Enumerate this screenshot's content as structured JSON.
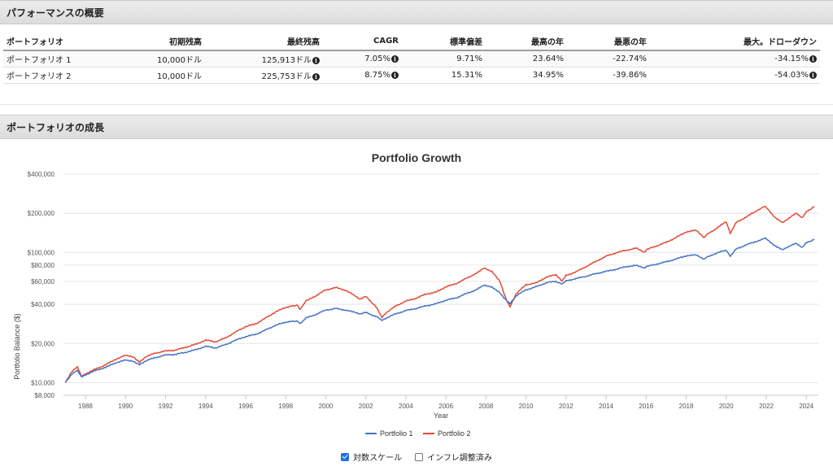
{
  "performance": {
    "title": "パフォーマンスの概要",
    "headers": [
      "ポートフォリオ",
      "初期残高",
      "最終残高",
      "CAGR",
      "標準偏差",
      "最高の年",
      "最悪の年",
      "最大。ドローダウン"
    ],
    "rows": [
      {
        "name": "ポートフォリオ 1",
        "initial": "10,000ドル",
        "final": "125,913ドル",
        "cagr": "7.05%",
        "stdev": "9.71%",
        "best": "23.64%",
        "worst": "-22.74%",
        "maxdd": "-34.15%"
      },
      {
        "name": "ポートフォリオ 2",
        "initial": "10,000ドル",
        "final": "225,753ドル",
        "cagr": "8.75%",
        "stdev": "15.31%",
        "best": "34.95%",
        "worst": "-39.86%",
        "maxdd": "-54.03%"
      }
    ],
    "info_icon": "info-circle-icon"
  },
  "growth": {
    "title": "ポートフォリオの成長",
    "log_scale_label": "対数スケール",
    "log_scale_checked": true,
    "inflation_label": "インフレ調整済み",
    "inflation_checked": false
  },
  "chart_data": {
    "type": "line",
    "title": "Portfolio Growth",
    "xlabel": "Year",
    "ylabel": "Portfolio Balance ($)",
    "yscale": "log",
    "ylim": [
      8000,
      400000
    ],
    "xlim": [
      1986.9,
      2024.6
    ],
    "yticks": [
      {
        "value": 8000,
        "label": "$8,000"
      },
      {
        "value": 10000,
        "label": "$10,000"
      },
      {
        "value": 20000,
        "label": "$20,000"
      },
      {
        "value": 40000,
        "label": "$40,000"
      },
      {
        "value": 60000,
        "label": "$60,000"
      },
      {
        "value": 80000,
        "label": "$80,000"
      },
      {
        "value": 100000,
        "label": "$100,000"
      },
      {
        "value": 200000,
        "label": "$200,000"
      },
      {
        "value": 400000,
        "label": "$400,000"
      }
    ],
    "xticks": [
      "1988",
      "1990",
      "1992",
      "1994",
      "1996",
      "1998",
      "2000",
      "2002",
      "2004",
      "2006",
      "2008",
      "2010",
      "2012",
      "2014",
      "2016",
      "2018",
      "2020",
      "2022",
      "2024"
    ],
    "grid": true,
    "legend_position": "bottom",
    "series": [
      {
        "name": "Portfolio 1",
        "color": "#4472c4",
        "points": [
          [
            1987.0,
            10000
          ],
          [
            1987.3,
            11600
          ],
          [
            1987.6,
            12400
          ],
          [
            1987.8,
            11100
          ],
          [
            1988.0,
            11500
          ],
          [
            1988.5,
            12400
          ],
          [
            1989.0,
            13100
          ],
          [
            1989.5,
            14200
          ],
          [
            1990.0,
            14900
          ],
          [
            1990.4,
            14600
          ],
          [
            1990.7,
            13700
          ],
          [
            1991.0,
            14700
          ],
          [
            1991.5,
            15600
          ],
          [
            1992.0,
            16300
          ],
          [
            1992.5,
            16500
          ],
          [
            1993.0,
            17100
          ],
          [
            1993.5,
            17900
          ],
          [
            1994.0,
            19000
          ],
          [
            1994.5,
            18500
          ],
          [
            1995.0,
            19600
          ],
          [
            1995.5,
            21200
          ],
          [
            1996.0,
            22600
          ],
          [
            1996.5,
            23500
          ],
          [
            1997.0,
            25400
          ],
          [
            1997.5,
            27600
          ],
          [
            1998.0,
            29200
          ],
          [
            1998.6,
            29800
          ],
          [
            1998.7,
            28300
          ],
          [
            1999.0,
            31300
          ],
          [
            1999.5,
            33400
          ],
          [
            2000.0,
            36100
          ],
          [
            2000.5,
            37100
          ],
          [
            2001.0,
            36100
          ],
          [
            2001.7,
            33800
          ],
          [
            2002.0,
            34600
          ],
          [
            2002.5,
            32300
          ],
          [
            2002.8,
            30200
          ],
          [
            2003.0,
            31300
          ],
          [
            2003.5,
            33800
          ],
          [
            2004.0,
            35800
          ],
          [
            2004.5,
            37100
          ],
          [
            2005.0,
            38900
          ],
          [
            2005.5,
            40300
          ],
          [
            2006.0,
            43000
          ],
          [
            2006.5,
            44700
          ],
          [
            2007.0,
            48200
          ],
          [
            2007.5,
            51600
          ],
          [
            2007.9,
            55800
          ],
          [
            2008.3,
            54000
          ],
          [
            2008.7,
            49000
          ],
          [
            2009.0,
            43000
          ],
          [
            2009.2,
            40300
          ],
          [
            2009.5,
            46400
          ],
          [
            2010.0,
            51600
          ],
          [
            2010.5,
            54500
          ],
          [
            2011.0,
            58500
          ],
          [
            2011.5,
            60000
          ],
          [
            2011.8,
            57000
          ],
          [
            2012.0,
            60500
          ],
          [
            2012.5,
            63000
          ],
          [
            2013.0,
            65700
          ],
          [
            2013.5,
            68800
          ],
          [
            2014.0,
            71600
          ],
          [
            2014.5,
            74300
          ],
          [
            2015.0,
            77800
          ],
          [
            2015.5,
            79500
          ],
          [
            2015.9,
            75600
          ],
          [
            2016.0,
            77900
          ],
          [
            2016.5,
            81200
          ],
          [
            2017.0,
            84700
          ],
          [
            2017.5,
            89000
          ],
          [
            2018.0,
            94400
          ],
          [
            2018.5,
            95700
          ],
          [
            2018.9,
            88800
          ],
          [
            2019.0,
            91300
          ],
          [
            2019.5,
            98800
          ],
          [
            2020.0,
            104000
          ],
          [
            2020.2,
            93900
          ],
          [
            2020.5,
            106200
          ],
          [
            2021.0,
            114500
          ],
          [
            2021.5,
            121400
          ],
          [
            2021.9,
            129000
          ],
          [
            2022.0,
            127000
          ],
          [
            2022.4,
            113500
          ],
          [
            2022.8,
            105500
          ],
          [
            2023.0,
            109000
          ],
          [
            2023.5,
            117500
          ],
          [
            2023.8,
            109000
          ],
          [
            2024.0,
            118500
          ],
          [
            2024.3,
            124000
          ],
          [
            2024.4,
            125913
          ]
        ]
      },
      {
        "name": "Portfolio 2",
        "color": "#e34a33",
        "points": [
          [
            1987.0,
            10000
          ],
          [
            1987.3,
            12100
          ],
          [
            1987.6,
            13200
          ],
          [
            1987.8,
            11200
          ],
          [
            1988.0,
            11700
          ],
          [
            1988.5,
            12700
          ],
          [
            1989.0,
            13700
          ],
          [
            1989.5,
            15100
          ],
          [
            1990.0,
            16200
          ],
          [
            1990.4,
            15800
          ],
          [
            1990.7,
            14300
          ],
          [
            1991.0,
            15800
          ],
          [
            1991.5,
            16900
          ],
          [
            1992.0,
            17500
          ],
          [
            1992.5,
            17800
          ],
          [
            1993.0,
            18700
          ],
          [
            1993.5,
            19700
          ],
          [
            1994.0,
            21200
          ],
          [
            1994.5,
            20600
          ],
          [
            1995.0,
            22100
          ],
          [
            1995.5,
            24500
          ],
          [
            1996.0,
            27000
          ],
          [
            1996.5,
            28300
          ],
          [
            1997.0,
            31400
          ],
          [
            1997.5,
            35000
          ],
          [
            1998.0,
            37900
          ],
          [
            1998.6,
            39500
          ],
          [
            1998.7,
            36300
          ],
          [
            1999.0,
            42300
          ],
          [
            1999.5,
            46400
          ],
          [
            2000.0,
            51600
          ],
          [
            2000.5,
            53700
          ],
          [
            2001.0,
            51200
          ],
          [
            2001.7,
            44000
          ],
          [
            2002.0,
            45900
          ],
          [
            2002.5,
            38500
          ],
          [
            2002.8,
            31800
          ],
          [
            2003.0,
            34300
          ],
          [
            2003.5,
            38900
          ],
          [
            2004.0,
            42300
          ],
          [
            2004.5,
            44400
          ],
          [
            2005.0,
            47900
          ],
          [
            2005.5,
            49500
          ],
          [
            2006.0,
            54500
          ],
          [
            2006.5,
            57500
          ],
          [
            2007.0,
            63000
          ],
          [
            2007.5,
            69000
          ],
          [
            2007.9,
            75500
          ],
          [
            2008.3,
            71000
          ],
          [
            2008.7,
            60000
          ],
          [
            2009.0,
            43900
          ],
          [
            2009.2,
            38000
          ],
          [
            2009.5,
            48000
          ],
          [
            2010.0,
            56600
          ],
          [
            2010.5,
            58300
          ],
          [
            2011.0,
            64500
          ],
          [
            2011.5,
            67600
          ],
          [
            2011.8,
            60000
          ],
          [
            2012.0,
            66500
          ],
          [
            2012.5,
            71000
          ],
          [
            2013.0,
            77900
          ],
          [
            2013.5,
            85600
          ],
          [
            2014.0,
            93600
          ],
          [
            2014.5,
            99500
          ],
          [
            2015.0,
            104000
          ],
          [
            2015.5,
            107800
          ],
          [
            2015.9,
            100000
          ],
          [
            2016.0,
            104800
          ],
          [
            2016.5,
            111900
          ],
          [
            2017.0,
            119600
          ],
          [
            2017.5,
            130400
          ],
          [
            2018.0,
            143900
          ],
          [
            2018.5,
            148000
          ],
          [
            2018.9,
            130000
          ],
          [
            2019.0,
            136000
          ],
          [
            2019.5,
            153000
          ],
          [
            2020.0,
            172300
          ],
          [
            2020.2,
            140600
          ],
          [
            2020.5,
            170000
          ],
          [
            2021.0,
            187400
          ],
          [
            2021.5,
            208500
          ],
          [
            2021.9,
            226400
          ],
          [
            2022.0,
            221000
          ],
          [
            2022.4,
            188000
          ],
          [
            2022.8,
            170500
          ],
          [
            2023.0,
            177700
          ],
          [
            2023.5,
            200400
          ],
          [
            2023.8,
            184000
          ],
          [
            2024.0,
            205000
          ],
          [
            2024.3,
            220000
          ],
          [
            2024.4,
            225753
          ]
        ]
      }
    ]
  }
}
